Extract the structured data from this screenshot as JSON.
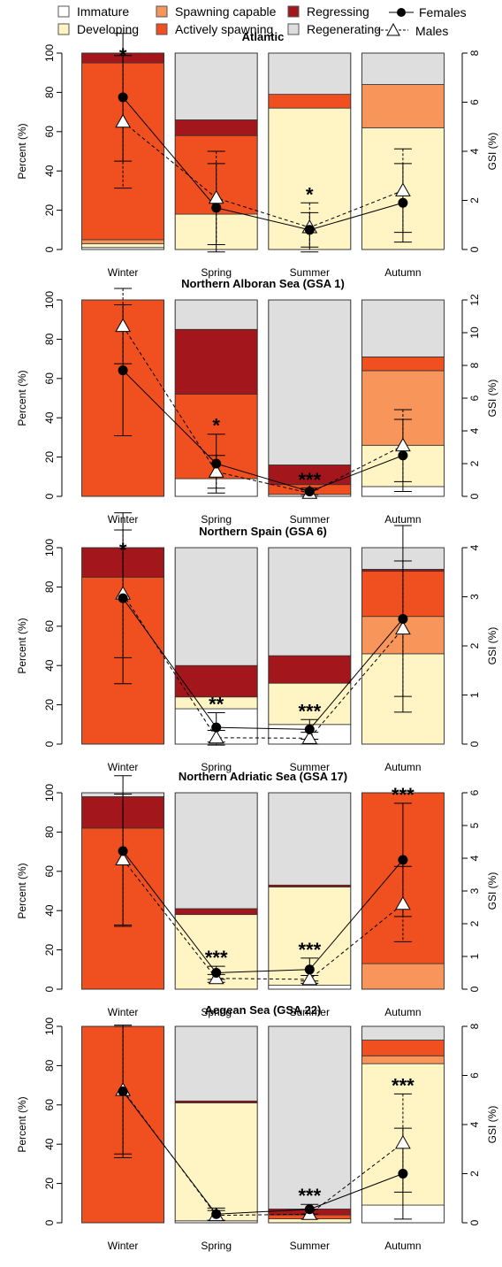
{
  "colors": {
    "Immature": "#ffffff",
    "Developing": "#fff5c4",
    "Spawning capable": "#f7955a",
    "Actively spawning": "#f04f1f",
    "Regressing": "#a2161c",
    "Regenerating": "#dedede"
  },
  "legend": {
    "stages": [
      "Immature",
      "Developing",
      "Spawning capable",
      "Actively spawning",
      "Regressing",
      "Regenerating"
    ],
    "females": "Females",
    "males": "Males"
  },
  "chart_data": [
    {
      "type": "bar",
      "title": "Atlantic",
      "ylabel": "Percent (%)",
      "y2label": "GSI (%)",
      "ylim": [
        0,
        100
      ],
      "y2lim": [
        0,
        8
      ],
      "y2ticks": [
        0,
        2,
        4,
        6,
        8
      ],
      "categories": [
        "Winter",
        "Spring",
        "Summer",
        "Autumn"
      ],
      "stages": {
        "Immature": [
          1,
          0,
          0,
          0
        ],
        "Developing": [
          2,
          18,
          72,
          62
        ],
        "Spawning capable": [
          2,
          0,
          0,
          22
        ],
        "Actively spawning": [
          90,
          40,
          7,
          0
        ],
        "Regressing": [
          5,
          8,
          0,
          0
        ],
        "Regenerating": [
          0,
          34,
          21,
          16
        ]
      },
      "females_gsi": [
        6.2,
        1.7,
        0.8,
        1.9
      ],
      "females_err": [
        2.6,
        1.8,
        0.7,
        1.6
      ],
      "males_gsi": [
        5.2,
        2.1,
        0.9,
        2.4
      ],
      "males_err": [
        2.7,
        1.9,
        1.0,
        1.7
      ],
      "significance": [
        "*",
        "",
        "*",
        ""
      ]
    },
    {
      "type": "bar",
      "title": "Northern Alboran Sea (GSA 1)",
      "ylabel": "Percent (%)",
      "y2label": "GSI (%)",
      "ylim": [
        0,
        100
      ],
      "y2lim": [
        0,
        12
      ],
      "y2ticks": [
        0,
        2,
        4,
        6,
        8,
        10,
        12
      ],
      "categories": [
        "Winter",
        "Spring",
        "Summer",
        "Autumn"
      ],
      "stages": {
        "Immature": [
          0,
          9,
          1,
          5
        ],
        "Developing": [
          0,
          0,
          0,
          21
        ],
        "Spawning capable": [
          0,
          0,
          0,
          38
        ],
        "Actively spawning": [
          100,
          43,
          5,
          7
        ],
        "Regressing": [
          0,
          33,
          10,
          0
        ],
        "Regenerating": [
          0,
          15,
          84,
          29
        ]
      },
      "females_gsi": [
        7.7,
        2.0,
        0.3,
        2.5
      ],
      "females_err": [
        4.0,
        1.8,
        0.2,
        2.2
      ],
      "males_gsi": [
        10.4,
        1.5,
        0.2,
        3.1
      ],
      "males_err": [
        2.3,
        1.0,
        0.2,
        2.2
      ],
      "significance": [
        "",
        "*",
        "***",
        ""
      ]
    },
    {
      "type": "bar",
      "title": "Northern Spain (GSA 6)",
      "ylabel": "Percent (%)",
      "y2label": "GSI (%)",
      "ylim": [
        0,
        100
      ],
      "y2lim": [
        0,
        4
      ],
      "y2ticks": [
        0,
        1,
        2,
        3,
        4
      ],
      "categories": [
        "Winter",
        "Spring",
        "Summer",
        "Autumn"
      ],
      "stages": {
        "Immature": [
          0,
          18,
          10,
          0
        ],
        "Developing": [
          0,
          6,
          21,
          46
        ],
        "Spawning capable": [
          0,
          0,
          0,
          19
        ],
        "Actively spawning": [
          85,
          0,
          0,
          23
        ],
        "Regressing": [
          15,
          16,
          14,
          1
        ],
        "Regenerating": [
          0,
          60,
          55,
          11
        ]
      },
      "females_gsi": [
        2.97,
        0.34,
        0.3,
        2.55
      ],
      "females_err": [
        1.74,
        0.3,
        0.2,
        1.9
      ],
      "males_gsi": [
        3.06,
        0.13,
        0.12,
        2.35
      ],
      "males_err": [
        1.3,
        0.15,
        0.12,
        1.38
      ],
      "significance": [
        "*",
        "**",
        "***",
        ""
      ]
    },
    {
      "type": "bar",
      "title": "Northern Adriatic Sea (GSA 17)",
      "ylabel": "Percent (%)",
      "y2label": "GSI (%)",
      "ylim": [
        0,
        100
      ],
      "y2lim": [
        0,
        6
      ],
      "y2ticks": [
        0,
        1,
        2,
        3,
        4,
        5,
        6
      ],
      "categories": [
        "Winter",
        "Spring",
        "Summer",
        "Autumn"
      ],
      "stages": {
        "Immature": [
          0,
          0,
          2,
          0
        ],
        "Developing": [
          0,
          38,
          50,
          0
        ],
        "Spawning capable": [
          0,
          0,
          0,
          13
        ],
        "Actively spawning": [
          82,
          0,
          0,
          87
        ],
        "Regressing": [
          16,
          3,
          1,
          0
        ],
        "Regenerating": [
          2,
          59,
          47,
          0
        ]
      },
      "females_gsi": [
        4.22,
        0.5,
        0.6,
        3.95
      ],
      "females_err": [
        2.3,
        0.2,
        0.35,
        1.73
      ],
      "males_gsi": [
        3.96,
        0.33,
        0.3,
        2.6
      ],
      "males_err": [
        2.0,
        0.12,
        0.12,
        1.15
      ],
      "significance": [
        "",
        "***",
        "***",
        "***"
      ]
    },
    {
      "type": "bar",
      "title": "Aegean Sea (GSA 22)",
      "ylabel": "Percent (%)",
      "y2label": "GSI (%)",
      "ylim": [
        0,
        100
      ],
      "y2lim": [
        0,
        8
      ],
      "y2ticks": [
        0,
        2,
        4,
        6,
        8
      ],
      "categories": [
        "Winter",
        "Spring",
        "Summer",
        "Autumn"
      ],
      "stages": {
        "Immature": [
          0,
          1,
          0,
          9
        ],
        "Developing": [
          0,
          60,
          2,
          72
        ],
        "Spawning capable": [
          0,
          0,
          0,
          4
        ],
        "Actively spawning": [
          100,
          0,
          2,
          8
        ],
        "Regressing": [
          0,
          1,
          3,
          0
        ],
        "Regenerating": [
          0,
          38,
          93,
          7
        ]
      },
      "females_gsi": [
        5.35,
        0.35,
        0.55,
        2.0
      ],
      "females_err": [
        2.7,
        0.25,
        0.2,
        1.85
      ],
      "males_gsi": [
        5.4,
        0.3,
        0.35,
        3.25
      ],
      "males_err": [
        2.6,
        0.2,
        0.2,
        2.0
      ],
      "significance": [
        "",
        "",
        "***",
        "***"
      ]
    }
  ]
}
